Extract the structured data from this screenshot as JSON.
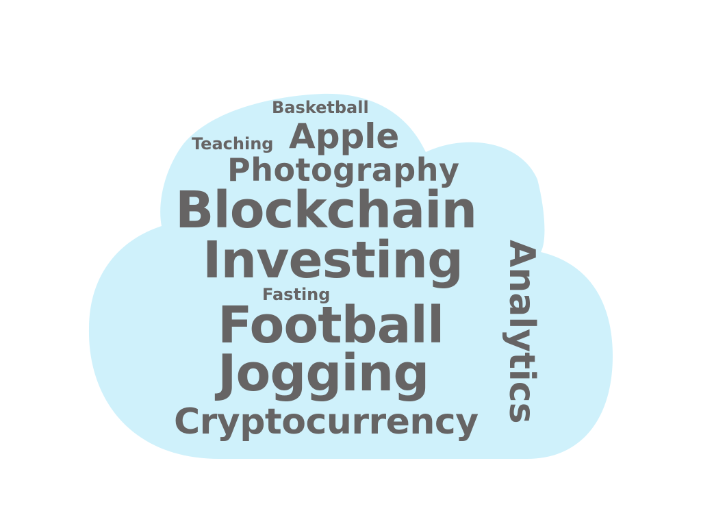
{
  "colors": {
    "background": "#ffffff",
    "cloud": "#cff1fb",
    "text": "#666464"
  },
  "words": {
    "basketball": "Basketball",
    "teaching": "Teaching",
    "apple": "Apple",
    "photography": "Photography",
    "blockchain": "Blockchain",
    "investing": "Investing",
    "fasting": "Fasting",
    "football": "Football",
    "jogging": "Jogging",
    "cryptocurrency": "Cryptocurrency",
    "analytics": "Analytics"
  }
}
